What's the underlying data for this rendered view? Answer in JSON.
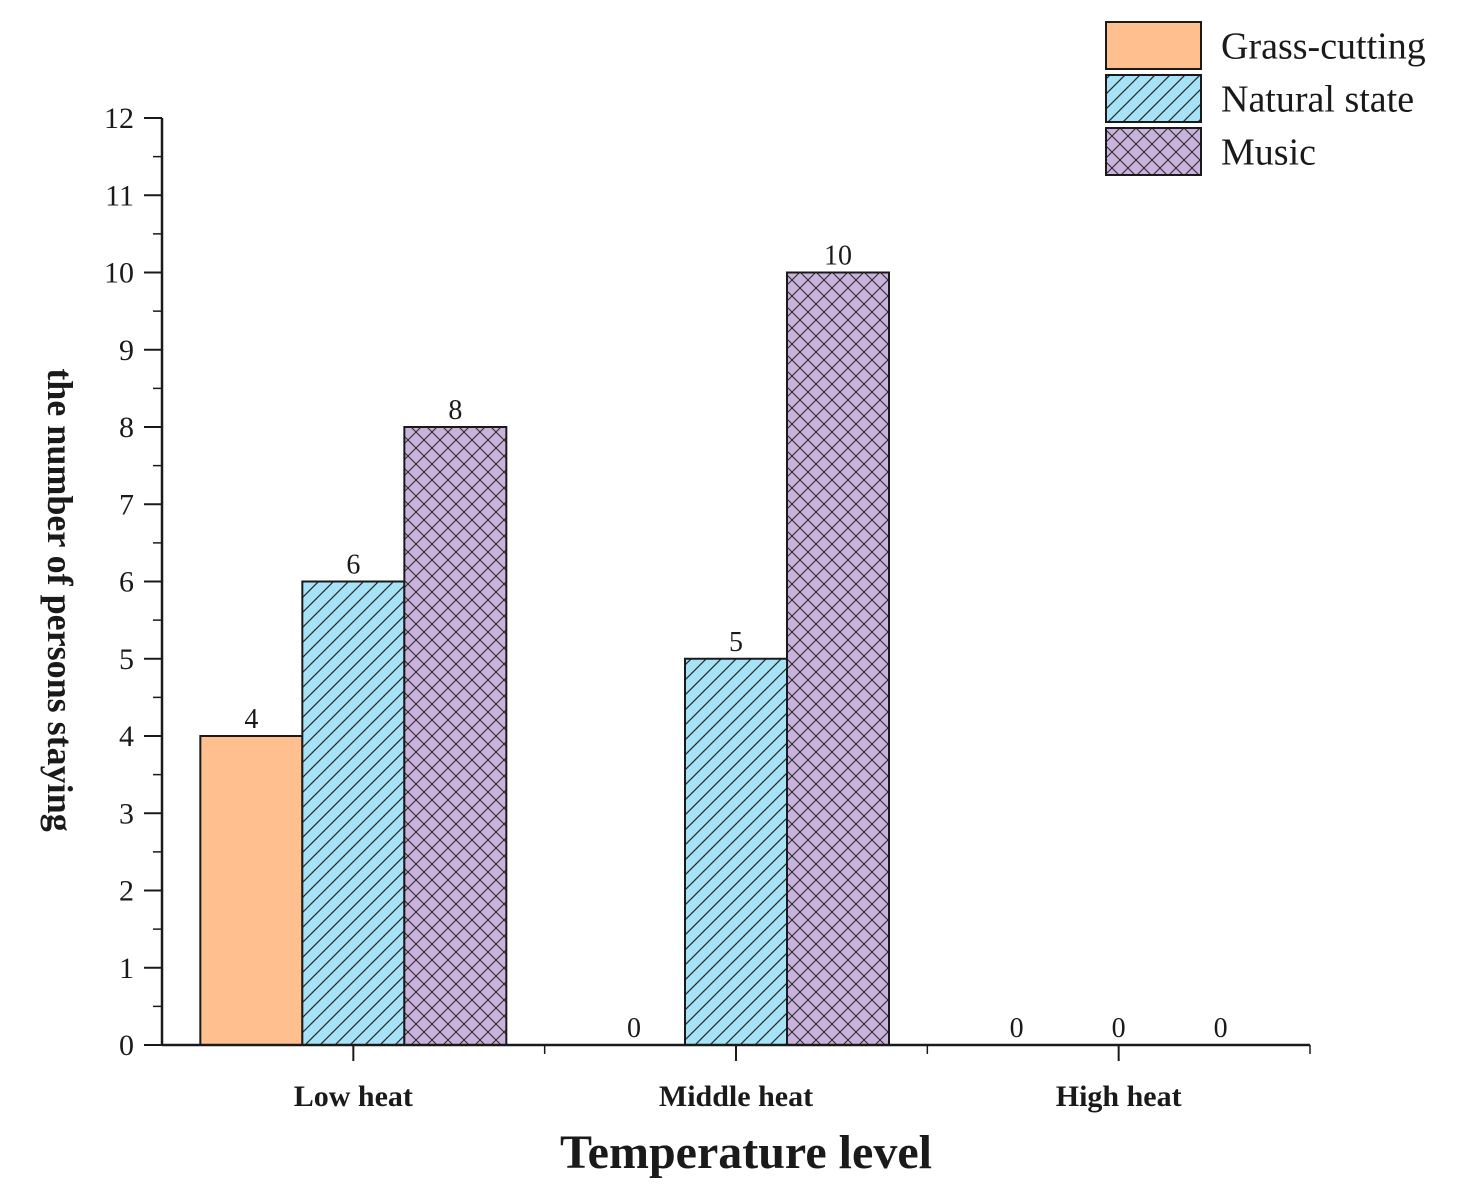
{
  "chart_data": {
    "type": "bar",
    "title": "",
    "xlabel": "Temperature level",
    "ylabel": "the number of persons staying",
    "categories": [
      "Low heat",
      "Middle heat",
      "High heat"
    ],
    "series": [
      {
        "name": "Grass-cutting",
        "values": [
          4,
          0,
          0
        ],
        "color": "#ffbf8f",
        "pattern": "solid"
      },
      {
        "name": "Natural state",
        "values": [
          6,
          5,
          0
        ],
        "color": "#a7e3f7",
        "pattern": "diagonal"
      },
      {
        "name": "Music",
        "values": [
          8,
          10,
          0
        ],
        "color": "#c9b2dc",
        "pattern": "crosshatch"
      }
    ],
    "ylim": [
      0,
      12
    ],
    "yticks": [
      "0",
      "1",
      "2",
      "3",
      "4",
      "5",
      "6",
      "7",
      "8",
      "9",
      "10",
      "11",
      "12"
    ],
    "grid": false,
    "legend_position": "top-right",
    "data_labels": [
      [
        "4",
        "0",
        "0"
      ],
      [
        "6",
        "5",
        "0"
      ],
      [
        "8",
        "10",
        "0"
      ]
    ]
  }
}
